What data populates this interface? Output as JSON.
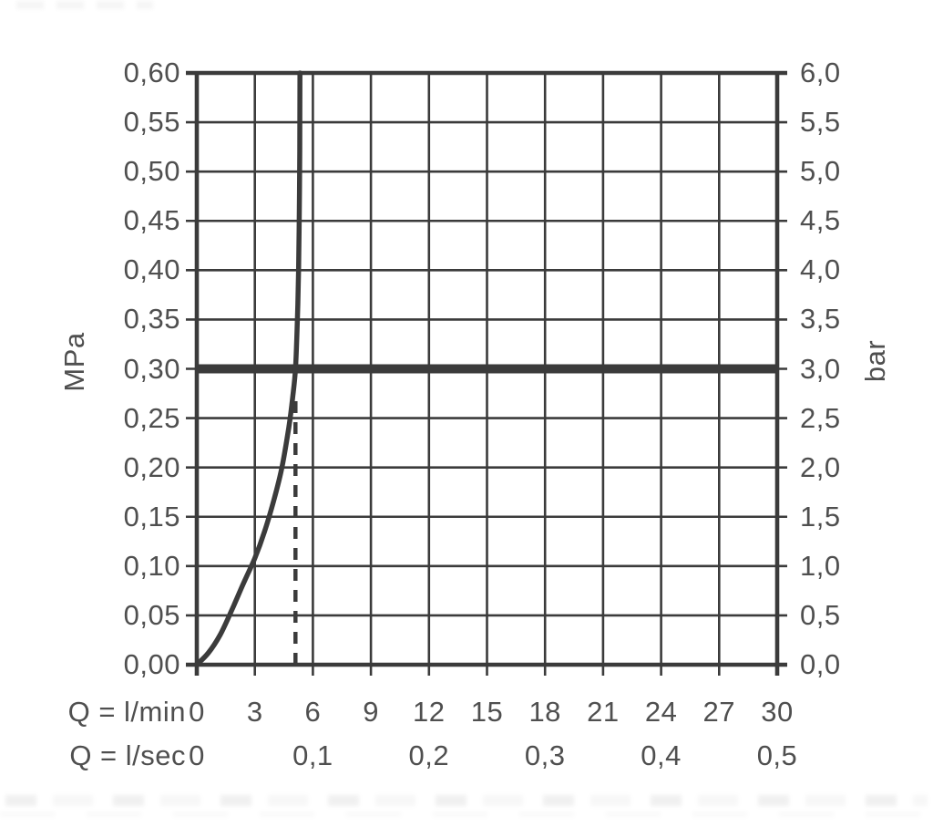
{
  "figure": {
    "background_color": "#ffffff",
    "ink_color": "#3b3b3b",
    "text_color": "#4f4f4f"
  },
  "axes": {
    "left_title": "MPa",
    "right_title": "bar",
    "flow_row1_label": "Q = l/min",
    "flow_row2_label": "Q = l/sec"
  },
  "chart_data": {
    "type": "line",
    "title": "",
    "description": "Flow rate versus pressure diagram; thick horizontal reference line at 0,30 MPa (3,0 bar); dashed guide line marks the flow of about 5 l/min reached at 3 bar.",
    "grid": true,
    "x_axis": {
      "unit_primary": "l/min",
      "unit_secondary": "l/sec",
      "range_lmin": [
        0,
        30
      ],
      "ticks_lmin": [
        0,
        3,
        6,
        9,
        12,
        15,
        18,
        21,
        24,
        27,
        30
      ],
      "tick_labels_lmin": [
        "0",
        "3",
        "6",
        "9",
        "12",
        "15",
        "18",
        "21",
        "24",
        "27",
        "30"
      ],
      "ticks_lsec_values": [
        0,
        0.1,
        0.2,
        0.3,
        0.4,
        0.5
      ],
      "ticks_lsec_positions_lmin": [
        0,
        6,
        12,
        18,
        24,
        30
      ],
      "tick_labels_lsec": [
        "0",
        "0,1",
        "0,2",
        "0,3",
        "0,4",
        "0,5"
      ]
    },
    "y_axis_left": {
      "label": "MPa",
      "range": [
        0,
        0.6
      ],
      "tick_step": 0.05,
      "tick_labels_top_to_bottom": [
        "0,60",
        "0,55",
        "0,50",
        "0,45",
        "0,40",
        "0,35",
        "0,30",
        "0,25",
        "0,20",
        "0,15",
        "0,10",
        "0,05",
        "0,00"
      ]
    },
    "y_axis_right": {
      "label": "bar",
      "range": [
        0,
        6
      ],
      "tick_step": 0.5,
      "tick_labels_top_to_bottom": [
        "6,0",
        "5,5",
        "5,0",
        "4,5",
        "4,0",
        "3,5",
        "3,0",
        "2,5",
        "2,0",
        "1,5",
        "1,0",
        "0,5",
        "0,0"
      ]
    },
    "reference_line": {
      "orientation": "horizontal",
      "mpa": 0.3,
      "bar": 3.0
    },
    "guide_line": {
      "style": "dashed",
      "orientation": "vertical",
      "q_lmin": 5.1,
      "from_mpa": 0.0,
      "to_mpa": 0.272
    },
    "series": [
      {
        "name": "flow-curve",
        "points_q_lmin_vs_mpa": [
          [
            0,
            0
          ],
          [
            0.6,
            0.012
          ],
          [
            1.2,
            0.03
          ],
          [
            1.8,
            0.055
          ],
          [
            2.4,
            0.082
          ],
          [
            3.0,
            0.108
          ],
          [
            3.5,
            0.135
          ],
          [
            4.0,
            0.168
          ],
          [
            4.4,
            0.2
          ],
          [
            4.75,
            0.24
          ],
          [
            4.95,
            0.27
          ],
          [
            5.1,
            0.3
          ],
          [
            5.2,
            0.35
          ],
          [
            5.26,
            0.4
          ],
          [
            5.3,
            0.46
          ],
          [
            5.32,
            0.52
          ],
          [
            5.33,
            0.6
          ]
        ]
      }
    ]
  }
}
